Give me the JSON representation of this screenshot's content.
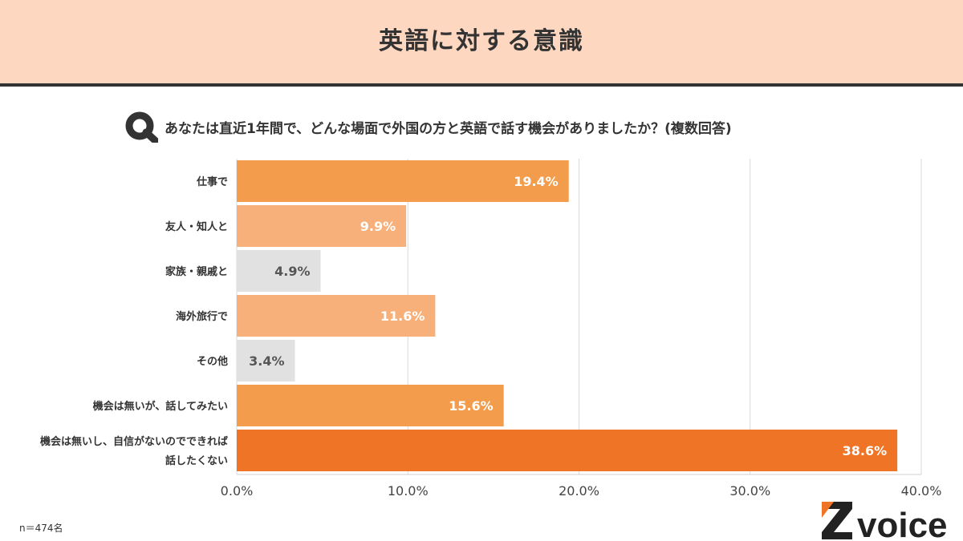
{
  "header": {
    "title": "英語に対する意識"
  },
  "question": {
    "icon": "q-icon",
    "text": "あなたは直近1年間で、どんな場面で外国の方と英語で話す機会がありましたか？(複数回答)"
  },
  "note": "n＝474名",
  "logo": {
    "text": "voice",
    "icon": "z-logo-icon"
  },
  "chart_data": {
    "type": "bar",
    "orientation": "horizontal",
    "categories": [
      "仕事で",
      "友人・知人と",
      "家族・親戚と",
      "海外旅行で",
      "その他",
      "機会は無いが、話してみたい",
      "機会は無いし、自信がないのでできれば話したくない"
    ],
    "category_lines": [
      [
        "仕事で"
      ],
      [
        "友人・知人と"
      ],
      [
        "家族・親戚と"
      ],
      [
        "海外旅行で"
      ],
      [
        "その他"
      ],
      [
        "機会は無いが、話してみたい"
      ],
      [
        "機会は無いし、自信がないのでできれば",
        "話したくない"
      ]
    ],
    "values": [
      19.4,
      9.9,
      4.9,
      11.6,
      3.4,
      15.6,
      38.6
    ],
    "value_labels": [
      "19.4%",
      "9.9%",
      "4.9%",
      "11.6%",
      "3.4%",
      "15.6%",
      "38.6%"
    ],
    "bar_colors": [
      "#f39c4b",
      "#f8b07a",
      "#e1e1e1",
      "#f8b07a",
      "#e1e1e1",
      "#f39c4b",
      "#f07426"
    ],
    "label_colors": [
      "#ffffff",
      "#ffffff",
      "#555555",
      "#ffffff",
      "#555555",
      "#ffffff",
      "#ffffff"
    ],
    "xlim": [
      0,
      40
    ],
    "xticks": [
      0,
      10,
      20,
      30,
      40
    ],
    "xtick_labels": [
      "0.0%",
      "10.0%",
      "20.0%",
      "30.0%",
      "40.0%"
    ],
    "grid": true,
    "legend": "none"
  }
}
